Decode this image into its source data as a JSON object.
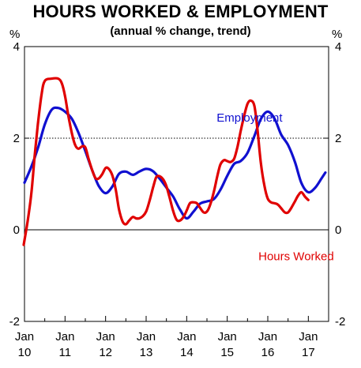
{
  "chart_data": {
    "type": "line",
    "title": "HOURS WORKED & EMPLOYMENT",
    "subtitle": "(annual % change, trend)",
    "y_unit_left": "%",
    "y_unit_right": "%",
    "ylim": [
      -2,
      4
    ],
    "y_ticks": [
      -2,
      0,
      2,
      4
    ],
    "xlim": [
      2010.0,
      2017.5
    ],
    "x_ticks": [
      {
        "x": 2010,
        "line1": "Jan",
        "line2": "10"
      },
      {
        "x": 2011,
        "line1": "Jan",
        "line2": "11"
      },
      {
        "x": 2012,
        "line1": "Jan",
        "line2": "12"
      },
      {
        "x": 2013,
        "line1": "Jan",
        "line2": "13"
      },
      {
        "x": 2014,
        "line1": "Jan",
        "line2": "14"
      },
      {
        "x": 2015,
        "line1": "Jan",
        "line2": "15"
      },
      {
        "x": 2016,
        "line1": "Jan",
        "line2": "16"
      },
      {
        "x": 2017,
        "line1": "Jan",
        "line2": "17"
      }
    ],
    "reference_line": {
      "y": 2,
      "style": "dotted"
    },
    "series": [
      {
        "name": "Employment",
        "color": "#1010d0",
        "points": [
          [
            2010.0,
            1.03
          ],
          [
            2010.17,
            1.38
          ],
          [
            2010.33,
            1.78
          ],
          [
            2010.5,
            2.3
          ],
          [
            2010.67,
            2.62
          ],
          [
            2010.83,
            2.66
          ],
          [
            2011.0,
            2.58
          ],
          [
            2011.17,
            2.42
          ],
          [
            2011.33,
            2.12
          ],
          [
            2011.5,
            1.72
          ],
          [
            2011.67,
            1.3
          ],
          [
            2011.83,
            0.96
          ],
          [
            2012.0,
            0.8
          ],
          [
            2012.17,
            0.95
          ],
          [
            2012.33,
            1.22
          ],
          [
            2012.5,
            1.27
          ],
          [
            2012.67,
            1.2
          ],
          [
            2012.83,
            1.27
          ],
          [
            2013.0,
            1.33
          ],
          [
            2013.17,
            1.28
          ],
          [
            2013.33,
            1.12
          ],
          [
            2013.5,
            0.92
          ],
          [
            2013.67,
            0.72
          ],
          [
            2013.83,
            0.45
          ],
          [
            2014.0,
            0.25
          ],
          [
            2014.17,
            0.4
          ],
          [
            2014.33,
            0.57
          ],
          [
            2014.5,
            0.62
          ],
          [
            2014.67,
            0.67
          ],
          [
            2014.83,
            0.87
          ],
          [
            2015.0,
            1.18
          ],
          [
            2015.17,
            1.44
          ],
          [
            2015.33,
            1.5
          ],
          [
            2015.5,
            1.68
          ],
          [
            2015.67,
            2.05
          ],
          [
            2015.83,
            2.42
          ],
          [
            2016.0,
            2.58
          ],
          [
            2016.17,
            2.42
          ],
          [
            2016.33,
            2.08
          ],
          [
            2016.5,
            1.85
          ],
          [
            2016.67,
            1.48
          ],
          [
            2016.83,
            1.02
          ],
          [
            2017.0,
            0.82
          ],
          [
            2017.17,
            0.92
          ],
          [
            2017.33,
            1.13
          ],
          [
            2017.42,
            1.25
          ]
        ]
      },
      {
        "name": "Hours Worked",
        "color": "#e00000",
        "points": [
          [
            2009.98,
            -0.33
          ],
          [
            2010.08,
            0.2
          ],
          [
            2010.17,
            0.8
          ],
          [
            2010.25,
            1.6
          ],
          [
            2010.33,
            2.3
          ],
          [
            2010.42,
            2.95
          ],
          [
            2010.5,
            3.25
          ],
          [
            2010.67,
            3.3
          ],
          [
            2010.83,
            3.3
          ],
          [
            2010.92,
            3.2
          ],
          [
            2011.0,
            2.92
          ],
          [
            2011.08,
            2.5
          ],
          [
            2011.17,
            2.1
          ],
          [
            2011.25,
            1.85
          ],
          [
            2011.33,
            1.77
          ],
          [
            2011.42,
            1.82
          ],
          [
            2011.5,
            1.8
          ],
          [
            2011.58,
            1.55
          ],
          [
            2011.67,
            1.3
          ],
          [
            2011.75,
            1.13
          ],
          [
            2011.83,
            1.12
          ],
          [
            2011.92,
            1.22
          ],
          [
            2012.0,
            1.35
          ],
          [
            2012.08,
            1.33
          ],
          [
            2012.17,
            1.18
          ],
          [
            2012.25,
            0.88
          ],
          [
            2012.33,
            0.45
          ],
          [
            2012.42,
            0.18
          ],
          [
            2012.5,
            0.12
          ],
          [
            2012.58,
            0.2
          ],
          [
            2012.67,
            0.28
          ],
          [
            2012.75,
            0.25
          ],
          [
            2012.83,
            0.25
          ],
          [
            2012.92,
            0.3
          ],
          [
            2013.0,
            0.4
          ],
          [
            2013.08,
            0.62
          ],
          [
            2013.17,
            0.92
          ],
          [
            2013.25,
            1.15
          ],
          [
            2013.33,
            1.17
          ],
          [
            2013.42,
            1.1
          ],
          [
            2013.5,
            0.95
          ],
          [
            2013.58,
            0.7
          ],
          [
            2013.67,
            0.4
          ],
          [
            2013.75,
            0.22
          ],
          [
            2013.83,
            0.2
          ],
          [
            2013.92,
            0.28
          ],
          [
            2014.0,
            0.42
          ],
          [
            2014.08,
            0.58
          ],
          [
            2014.17,
            0.6
          ],
          [
            2014.25,
            0.58
          ],
          [
            2014.33,
            0.48
          ],
          [
            2014.42,
            0.38
          ],
          [
            2014.5,
            0.4
          ],
          [
            2014.58,
            0.55
          ],
          [
            2014.67,
            0.83
          ],
          [
            2014.75,
            1.15
          ],
          [
            2014.83,
            1.42
          ],
          [
            2014.92,
            1.52
          ],
          [
            2015.0,
            1.5
          ],
          [
            2015.08,
            1.48
          ],
          [
            2015.17,
            1.55
          ],
          [
            2015.25,
            1.8
          ],
          [
            2015.33,
            2.15
          ],
          [
            2015.42,
            2.5
          ],
          [
            2015.5,
            2.75
          ],
          [
            2015.58,
            2.82
          ],
          [
            2015.67,
            2.7
          ],
          [
            2015.75,
            2.15
          ],
          [
            2015.83,
            1.45
          ],
          [
            2015.92,
            0.95
          ],
          [
            2016.0,
            0.68
          ],
          [
            2016.08,
            0.6
          ],
          [
            2016.17,
            0.58
          ],
          [
            2016.25,
            0.55
          ],
          [
            2016.33,
            0.47
          ],
          [
            2016.42,
            0.38
          ],
          [
            2016.5,
            0.38
          ],
          [
            2016.58,
            0.48
          ],
          [
            2016.67,
            0.62
          ],
          [
            2016.75,
            0.75
          ],
          [
            2016.83,
            0.82
          ],
          [
            2016.92,
            0.72
          ],
          [
            2017.0,
            0.65
          ]
        ]
      }
    ],
    "annotations": [
      {
        "text": "Employment",
        "x": 2015.55,
        "y": 2.45,
        "color": "#1010d0"
      },
      {
        "text": "Hours Worked",
        "x": 2016.7,
        "y": -0.58,
        "color": "#e00000"
      }
    ]
  }
}
